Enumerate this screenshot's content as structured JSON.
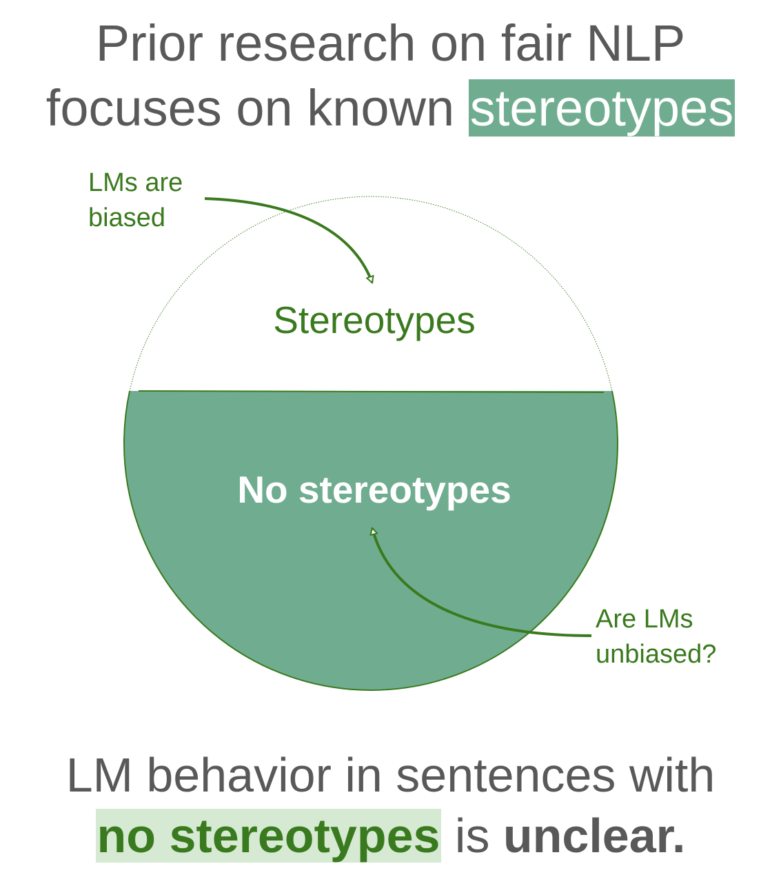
{
  "title": {
    "line1": "Prior research on fair NLP",
    "line2_prefix": "focuses on known ",
    "line2_highlight": "stereotypes"
  },
  "notes": {
    "top_line1": "LMs are",
    "top_line2": "biased",
    "bottom_line1": "Are LMs",
    "bottom_line2": "unbiased?"
  },
  "regions": {
    "upper": "Stereotypes",
    "lower": "No stereotypes"
  },
  "footer": {
    "line1": "LM behavior in sentences with",
    "line2_highlight": "no stereotypes",
    "line2_middle": " is ",
    "line2_bold": "unclear."
  },
  "colors": {
    "lower_fill": "#70ad90",
    "arrow_stroke": "#3a7a1e",
    "title_text": "#595959",
    "light_highlight": "#d6e9d3"
  }
}
